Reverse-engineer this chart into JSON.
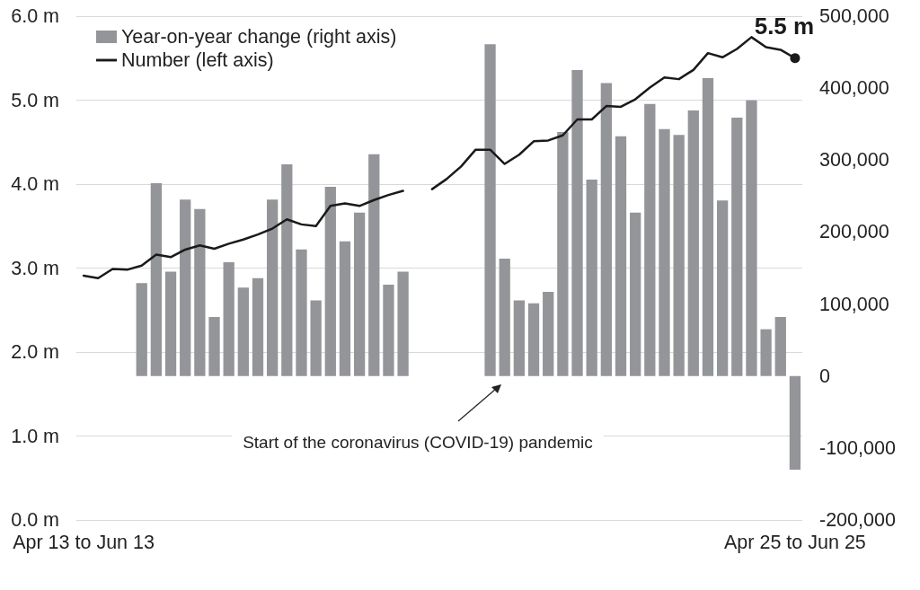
{
  "chart_data": {
    "type": "bar",
    "categories": [
      "Apr 13 to Jun 13",
      null,
      null,
      null,
      null,
      null,
      null,
      null,
      null,
      null,
      null,
      null,
      null,
      null,
      null,
      null,
      null,
      null,
      null,
      null,
      null,
      null,
      null,
      null,
      null,
      null,
      null,
      null,
      null,
      null,
      null,
      null,
      null,
      null,
      null,
      null,
      null,
      null,
      null,
      null,
      null,
      null,
      null,
      null,
      null,
      null,
      null,
      null,
      null,
      "Apr 25 to Jun 25"
    ],
    "series": [
      {
        "name": "Year-on-year change (right axis)",
        "axis": "y2",
        "color": "#939598",
        "values": [
          null,
          null,
          null,
          null,
          129000,
          268000,
          145000,
          245000,
          232000,
          82000,
          158000,
          123000,
          136000,
          245000,
          294000,
          176000,
          105000,
          263000,
          187000,
          227000,
          308000,
          127000,
          145000,
          null,
          null,
          null,
          null,
          null,
          461000,
          163000,
          105000,
          101000,
          117000,
          339000,
          425000,
          273000,
          407000,
          333000,
          227000,
          378000,
          343000,
          335000,
          369000,
          414000,
          244000,
          359000,
          383000,
          65000,
          82000,
          -130000
        ]
      },
      {
        "name": "Number (left axis)",
        "type": "line",
        "color": "#1a1a1a",
        "values": [
          2.91,
          2.88,
          2.99,
          2.98,
          3.03,
          3.16,
          3.13,
          3.22,
          3.27,
          3.23,
          3.29,
          3.34,
          3.4,
          3.47,
          3.58,
          3.52,
          3.5,
          3.74,
          3.77,
          3.74,
          3.81,
          3.87,
          3.92,
          null,
          3.94,
          4.06,
          4.21,
          4.41,
          4.41,
          4.24,
          4.35,
          4.51,
          4.52,
          4.58,
          4.77,
          4.77,
          4.93,
          4.92,
          5.01,
          5.15,
          5.27,
          5.25,
          5.36,
          5.56,
          5.51,
          5.61,
          5.75,
          5.63,
          5.6,
          5.5
        ],
        "value_labels": [
          null,
          null,
          null,
          null,
          null,
          null,
          null,
          null,
          null,
          null,
          null,
          null,
          null,
          null,
          null,
          null,
          null,
          null,
          null,
          null,
          null,
          null,
          null,
          null,
          null,
          null,
          null,
          null,
          null,
          null,
          null,
          null,
          null,
          null,
          null,
          null,
          null,
          null,
          null,
          null,
          null,
          null,
          null,
          null,
          null,
          null,
          null,
          null,
          null,
          "5.5 m"
        ]
      }
    ],
    "ylim": [
      0,
      6
    ],
    "yticks": [
      {
        "value": 0,
        "label": "0.0 m"
      },
      {
        "value": 1,
        "label": "1.0 m"
      },
      {
        "value": 2,
        "label": "2.0 m"
      },
      {
        "value": 3,
        "label": "3.0 m"
      },
      {
        "value": 4,
        "label": "4.0 m"
      },
      {
        "value": 5,
        "label": "5.0 m"
      },
      {
        "value": 6,
        "label": "6.0 m"
      }
    ],
    "y2lim": [
      -200000,
      500000
    ],
    "y2ticks": [
      {
        "value": -200000,
        "label": "-200,000"
      },
      {
        "value": -100000,
        "label": "-100,000"
      },
      0,
      {
        "value": 100000,
        "label": "100,000"
      },
      {
        "value": 200000,
        "label": "200,000"
      },
      {
        "value": 300000,
        "label": "300,000"
      },
      {
        "value": 400000,
        "label": "400,000"
      },
      {
        "value": 500000,
        "label": "500,000"
      }
    ],
    "grid": "y",
    "legend": "top left",
    "annotations": [
      "Start of the coronavirus (COVID-19) pandemic"
    ]
  }
}
